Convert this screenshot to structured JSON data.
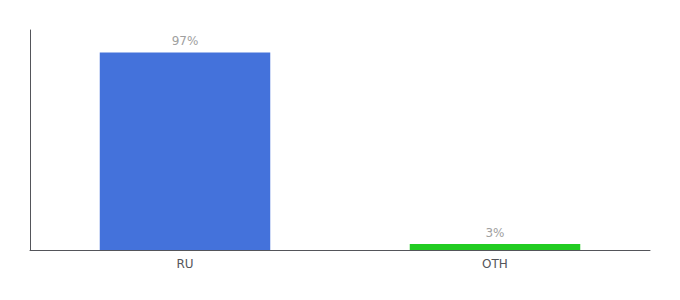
{
  "chart_data": {
    "type": "bar",
    "categories": [
      "RU",
      "OTH"
    ],
    "values": [
      97,
      3
    ],
    "value_labels": [
      "97%",
      "3%"
    ],
    "colors": [
      "#4472db",
      "#22cc22"
    ],
    "ylim": [
      0,
      108
    ],
    "data_labels": true,
    "tick_labels": "x",
    "grid": false
  }
}
